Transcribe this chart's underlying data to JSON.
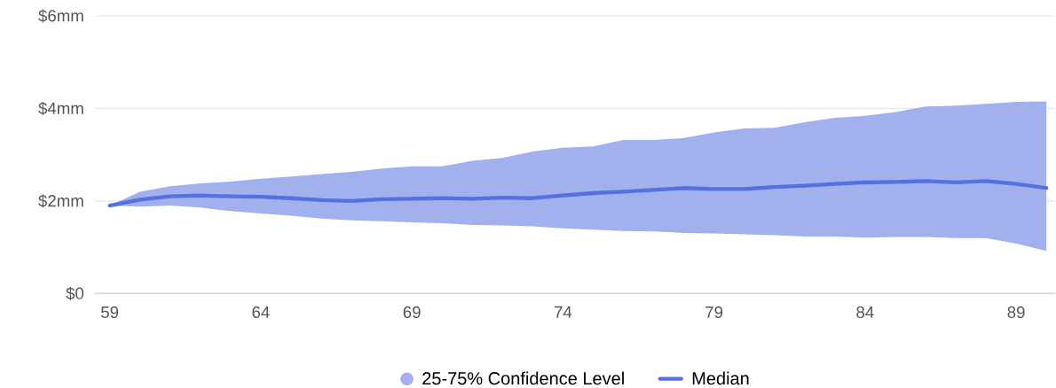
{
  "chart_data": {
    "type": "line",
    "x": [
      59,
      60,
      61,
      62,
      63,
      64,
      65,
      66,
      67,
      68,
      69,
      70,
      71,
      72,
      73,
      74,
      75,
      76,
      77,
      78,
      79,
      80,
      81,
      82,
      83,
      84,
      85,
      86,
      87,
      88,
      89,
      90
    ],
    "series": [
      {
        "name": "Median",
        "color": "#5570e0",
        "values": [
          1.9,
          2.03,
          2.1,
          2.12,
          2.1,
          2.09,
          2.06,
          2.02,
          2.0,
          2.04,
          2.05,
          2.06,
          2.05,
          2.07,
          2.06,
          2.12,
          2.17,
          2.2,
          2.24,
          2.28,
          2.26,
          2.26,
          2.3,
          2.33,
          2.37,
          2.4,
          2.41,
          2.43,
          2.4,
          2.43,
          2.37,
          2.28
        ],
        "lower": [
          1.9,
          1.88,
          1.9,
          1.86,
          1.78,
          1.73,
          1.68,
          1.62,
          1.58,
          1.56,
          1.54,
          1.52,
          1.48,
          1.47,
          1.45,
          1.41,
          1.38,
          1.35,
          1.34,
          1.31,
          1.3,
          1.28,
          1.26,
          1.23,
          1.23,
          1.21,
          1.22,
          1.22,
          1.2,
          1.2,
          1.08,
          0.92
        ],
        "upper": [
          1.9,
          2.2,
          2.32,
          2.38,
          2.42,
          2.48,
          2.53,
          2.58,
          2.63,
          2.7,
          2.75,
          2.75,
          2.87,
          2.93,
          3.07,
          3.15,
          3.18,
          3.32,
          3.32,
          3.36,
          3.48,
          3.57,
          3.58,
          3.7,
          3.8,
          3.84,
          3.92,
          4.04,
          4.06,
          4.1,
          4.14,
          4.15
        ]
      }
    ],
    "annotations": [
      "25-75% Confidence Level"
    ],
    "xlim": [
      58.5,
      90.3
    ],
    "xticks": [
      59,
      64,
      69,
      74,
      79,
      84,
      89
    ],
    "ylim": [
      0,
      6
    ],
    "yticks": [
      {
        "value": 0,
        "label": "$0"
      },
      {
        "value": 2,
        "label": "$2mm"
      },
      {
        "value": 4,
        "label": "$4mm"
      },
      {
        "value": 6,
        "label": "$6mm"
      }
    ],
    "grid": "y",
    "legend": "bottom",
    "marker": "none",
    "line_style": "solid"
  }
}
